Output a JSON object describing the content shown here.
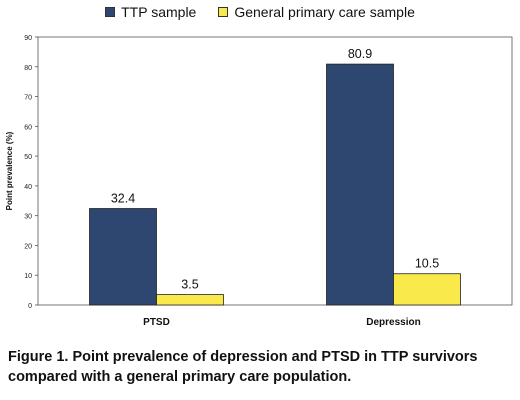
{
  "chart_data": {
    "type": "bar",
    "categories": [
      "PTSD",
      "Depression"
    ],
    "series": [
      {
        "name": "TTP sample",
        "values": [
          32.4,
          80.9
        ],
        "color": "#2e4770"
      },
      {
        "name": "General primary care sample",
        "values": [
          3.5,
          10.5
        ],
        "color": "#f9e94a"
      }
    ],
    "ylabel": "Point prevalence (%)",
    "xlabel": "",
    "ylim": [
      0,
      90
    ],
    "yticks": [
      0,
      10,
      20,
      30,
      40,
      50,
      60,
      70,
      80,
      90
    ],
    "data_labels": true,
    "grid": false,
    "legend_position": "top"
  },
  "caption": "Figure 1. Point prevalence of depression and PTSD in TTP survivors compared with a general primary care population."
}
